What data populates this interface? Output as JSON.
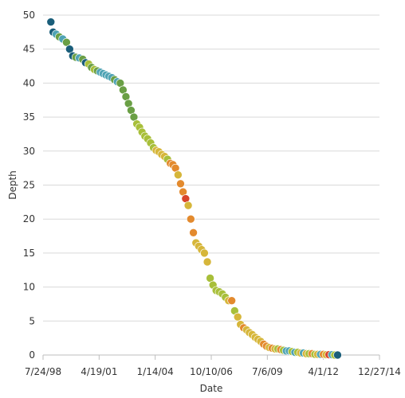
{
  "chart_data": {
    "type": "scatter",
    "title": "",
    "xlabel": "Date",
    "ylabel": "Depth",
    "x_axis_type": "date",
    "xlim": [
      "1998-07-24",
      "2014-12-27"
    ],
    "ylim": [
      0,
      50
    ],
    "x_ticks": [
      {
        "date": "1998-07-24",
        "label": "7/24/98"
      },
      {
        "date": "2001-04-19",
        "label": "4/19/01"
      },
      {
        "date": "2004-01-14",
        "label": "1/14/04"
      },
      {
        "date": "2006-10-10",
        "label": "10/10/06"
      },
      {
        "date": "2009-07-06",
        "label": "7/6/09"
      },
      {
        "date": "2012-04-01",
        "label": "4/1/12"
      },
      {
        "date": "2014-12-27",
        "label": "12/27/14"
      }
    ],
    "y_ticks": [
      0,
      5,
      10,
      15,
      20,
      25,
      30,
      35,
      40,
      45,
      50
    ],
    "grid": "horizontal",
    "legend": "none",
    "colors": {
      "teal_dark": "#1a5e7a",
      "teal": "#4fa3b4",
      "green": "#6a9f45",
      "yellow_green": "#a8bf3a",
      "yellow": "#d6b63a",
      "orange": "#e38a2e",
      "red": "#d9452b"
    },
    "points": [
      {
        "date": "1998-12-10",
        "depth": 49.0,
        "color": "#1a5e7a"
      },
      {
        "date": "1999-01-20",
        "depth": 47.5,
        "color": "#1a5e7a"
      },
      {
        "date": "1999-03-15",
        "depth": 47.2,
        "color": "#4fa3b4"
      },
      {
        "date": "1999-05-10",
        "depth": 46.8,
        "color": "#6a9f45"
      },
      {
        "date": "1999-07-10",
        "depth": 46.5,
        "color": "#4fa3b4"
      },
      {
        "date": "1999-09-15",
        "depth": 46.0,
        "color": "#6a9f45"
      },
      {
        "date": "1999-11-10",
        "depth": 45.0,
        "color": "#1a5e7a"
      },
      {
        "date": "2000-01-05",
        "depth": 44.0,
        "color": "#1a5e7a"
      },
      {
        "date": "2000-03-01",
        "depth": 43.8,
        "color": "#6a9f45"
      },
      {
        "date": "2000-05-01",
        "depth": 43.7,
        "color": "#4fa3b4"
      },
      {
        "date": "2000-07-01",
        "depth": 43.5,
        "color": "#6a9f45"
      },
      {
        "date": "2000-08-20",
        "depth": 43.0,
        "color": "#1a5e7a"
      },
      {
        "date": "2000-10-15",
        "depth": 42.8,
        "color": "#a8bf3a"
      },
      {
        "date": "2000-12-05",
        "depth": 42.3,
        "color": "#6a9f45"
      },
      {
        "date": "2001-01-25",
        "depth": 42.0,
        "color": "#a8bf3a"
      },
      {
        "date": "2001-03-20",
        "depth": 41.8,
        "color": "#6a9f45"
      },
      {
        "date": "2001-05-10",
        "depth": 41.6,
        "color": "#4fa3b4"
      },
      {
        "date": "2001-07-01",
        "depth": 41.4,
        "color": "#4fa3b4"
      },
      {
        "date": "2001-08-20",
        "depth": 41.2,
        "color": "#4fa3b4"
      },
      {
        "date": "2001-10-10",
        "depth": 41.0,
        "color": "#4fa3b4"
      },
      {
        "date": "2001-12-01",
        "depth": 40.8,
        "color": "#4fa3b4"
      },
      {
        "date": "2002-01-20",
        "depth": 40.5,
        "color": "#6a9f45"
      },
      {
        "date": "2002-03-10",
        "depth": 40.2,
        "color": "#4fa3b4"
      },
      {
        "date": "2002-05-01",
        "depth": 40.0,
        "color": "#6a9f45"
      },
      {
        "date": "2002-06-20",
        "depth": 39.0,
        "color": "#6a9f45"
      },
      {
        "date": "2002-08-10",
        "depth": 38.0,
        "color": "#6a9f45"
      },
      {
        "date": "2002-09-25",
        "depth": 37.0,
        "color": "#6a9f45"
      },
      {
        "date": "2002-11-10",
        "depth": 36.0,
        "color": "#6a9f45"
      },
      {
        "date": "2002-12-30",
        "depth": 35.0,
        "color": "#6a9f45"
      },
      {
        "date": "2003-02-20",
        "depth": 34.0,
        "color": "#a8bf3a"
      },
      {
        "date": "2003-04-10",
        "depth": 33.5,
        "color": "#a8bf3a"
      },
      {
        "date": "2003-05-25",
        "depth": 32.8,
        "color": "#a8bf3a"
      },
      {
        "date": "2003-07-15",
        "depth": 32.2,
        "color": "#a8bf3a"
      },
      {
        "date": "2003-09-01",
        "depth": 31.8,
        "color": "#a8bf3a"
      },
      {
        "date": "2003-10-25",
        "depth": 31.2,
        "color": "#a8bf3a"
      },
      {
        "date": "2003-12-15",
        "depth": 30.5,
        "color": "#a8bf3a"
      },
      {
        "date": "2004-02-01",
        "depth": 30.1,
        "color": "#d6b63a"
      },
      {
        "date": "2004-03-20",
        "depth": 29.9,
        "color": "#d6b63a"
      },
      {
        "date": "2004-05-10",
        "depth": 29.5,
        "color": "#d6b63a"
      },
      {
        "date": "2004-07-01",
        "depth": 29.2,
        "color": "#d6b63a"
      },
      {
        "date": "2004-08-20",
        "depth": 28.8,
        "color": "#a8bf3a"
      },
      {
        "date": "2004-10-10",
        "depth": 28.2,
        "color": "#e38a2e"
      },
      {
        "date": "2004-11-25",
        "depth": 28.0,
        "color": "#e38a2e"
      },
      {
        "date": "2005-01-10",
        "depth": 27.5,
        "color": "#e38a2e"
      },
      {
        "date": "2005-02-25",
        "depth": 26.5,
        "color": "#d6b63a"
      },
      {
        "date": "2005-04-10",
        "depth": 25.2,
        "color": "#e38a2e"
      },
      {
        "date": "2005-05-25",
        "depth": 24.0,
        "color": "#e38a2e"
      },
      {
        "date": "2005-07-10",
        "depth": 23.0,
        "color": "#d9452b"
      },
      {
        "date": "2005-08-25",
        "depth": 22.0,
        "color": "#d6b63a"
      },
      {
        "date": "2005-10-10",
        "depth": 20.0,
        "color": "#e38a2e"
      },
      {
        "date": "2005-11-25",
        "depth": 18.0,
        "color": "#e38a2e"
      },
      {
        "date": "2006-01-10",
        "depth": 16.5,
        "color": "#d6b63a"
      },
      {
        "date": "2006-03-01",
        "depth": 16.0,
        "color": "#d6b63a"
      },
      {
        "date": "2006-04-20",
        "depth": 15.5,
        "color": "#d6b63a"
      },
      {
        "date": "2006-06-10",
        "depth": 15.0,
        "color": "#d6b63a"
      },
      {
        "date": "2006-08-01",
        "depth": 13.7,
        "color": "#d6b63a"
      },
      {
        "date": "2006-09-20",
        "depth": 11.3,
        "color": "#a8bf3a"
      },
      {
        "date": "2006-11-10",
        "depth": 10.3,
        "color": "#a8bf3a"
      },
      {
        "date": "2007-01-05",
        "depth": 9.5,
        "color": "#a8bf3a"
      },
      {
        "date": "2007-03-01",
        "depth": 9.3,
        "color": "#a8bf3a"
      },
      {
        "date": "2007-04-25",
        "depth": 9.0,
        "color": "#a8bf3a"
      },
      {
        "date": "2007-06-20",
        "depth": 8.5,
        "color": "#a8bf3a"
      },
      {
        "date": "2007-08-15",
        "depth": 8.0,
        "color": "#d6b63a"
      },
      {
        "date": "2007-10-10",
        "depth": 8.0,
        "color": "#e38a2e"
      },
      {
        "date": "2007-12-01",
        "depth": 6.5,
        "color": "#a8bf3a"
      },
      {
        "date": "2008-01-25",
        "depth": 5.6,
        "color": "#d6b63a"
      },
      {
        "date": "2008-03-15",
        "depth": 4.5,
        "color": "#d6b63a"
      },
      {
        "date": "2008-05-10",
        "depth": 4.0,
        "color": "#e38a2e"
      },
      {
        "date": "2008-07-01",
        "depth": 3.7,
        "color": "#d6b63a"
      },
      {
        "date": "2008-08-20",
        "depth": 3.3,
        "color": "#d6b63a"
      },
      {
        "date": "2008-10-10",
        "depth": 3.0,
        "color": "#d6b63a"
      },
      {
        "date": "2008-12-01",
        "depth": 2.6,
        "color": "#d6b63a"
      },
      {
        "date": "2009-01-20",
        "depth": 2.3,
        "color": "#d6b63a"
      },
      {
        "date": "2009-03-10",
        "depth": 2.0,
        "color": "#d6b63a"
      },
      {
        "date": "2009-05-01",
        "depth": 1.6,
        "color": "#e38a2e"
      },
      {
        "date": "2009-06-20",
        "depth": 1.3,
        "color": "#e38a2e"
      },
      {
        "date": "2009-08-10",
        "depth": 1.1,
        "color": "#d6b63a"
      },
      {
        "date": "2009-10-01",
        "depth": 1.0,
        "color": "#e38a2e"
      },
      {
        "date": "2009-11-20",
        "depth": 0.9,
        "color": "#d6b63a"
      },
      {
        "date": "2010-01-10",
        "depth": 0.9,
        "color": "#a8bf3a"
      },
      {
        "date": "2010-03-01",
        "depth": 0.8,
        "color": "#e38a2e"
      },
      {
        "date": "2010-04-20",
        "depth": 0.7,
        "color": "#a8bf3a"
      },
      {
        "date": "2010-06-10",
        "depth": 0.6,
        "color": "#4fa3b4"
      },
      {
        "date": "2010-08-01",
        "depth": 0.6,
        "color": "#4fa3b4"
      },
      {
        "date": "2010-09-20",
        "depth": 0.5,
        "color": "#a8bf3a"
      },
      {
        "date": "2010-11-10",
        "depth": 0.4,
        "color": "#4fa3b4"
      },
      {
        "date": "2011-01-01",
        "depth": 0.4,
        "color": "#a8bf3a"
      },
      {
        "date": "2011-02-20",
        "depth": 0.3,
        "color": "#d6b63a"
      },
      {
        "date": "2011-04-10",
        "depth": 0.3,
        "color": "#4fa3b4"
      },
      {
        "date": "2011-06-01",
        "depth": 0.2,
        "color": "#d6b63a"
      },
      {
        "date": "2011-07-20",
        "depth": 0.2,
        "color": "#a8bf3a"
      },
      {
        "date": "2011-09-10",
        "depth": 0.2,
        "color": "#e38a2e"
      },
      {
        "date": "2011-11-01",
        "depth": 0.1,
        "color": "#a8bf3a"
      },
      {
        "date": "2011-12-20",
        "depth": 0.1,
        "color": "#d6b63a"
      },
      {
        "date": "2012-02-10",
        "depth": 0.1,
        "color": "#4fa3b4"
      },
      {
        "date": "2012-04-01",
        "depth": 0.1,
        "color": "#e38a2e"
      },
      {
        "date": "2012-05-20",
        "depth": 0.05,
        "color": "#d6b63a"
      },
      {
        "date": "2012-07-10",
        "depth": 0.05,
        "color": "#d9452b"
      },
      {
        "date": "2012-09-01",
        "depth": 0.05,
        "color": "#4fa3b4"
      },
      {
        "date": "2012-10-20",
        "depth": 0.0,
        "color": "#a8bf3a"
      },
      {
        "date": "2012-12-10",
        "depth": 0.0,
        "color": "#1a5e7a"
      }
    ]
  }
}
